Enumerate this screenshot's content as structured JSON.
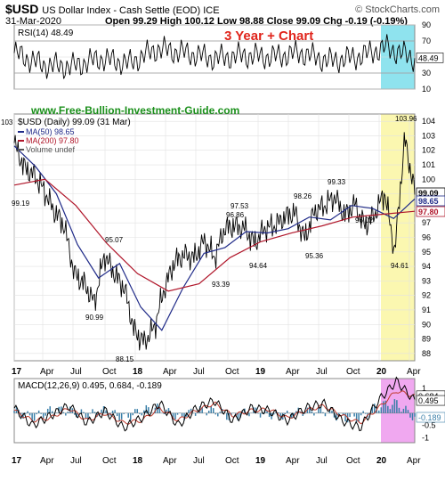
{
  "header": {
    "symbol": "$USD",
    "description": "US Dollar Index - Cash Settle (EOD) ICE",
    "date": "31-Mar-2020",
    "quote": "Open 99.29  High 100.12  Low 98.88  Close 99.09  Chg -0.19 (-0.19%)",
    "brand": "© StockCharts.com"
  },
  "colors": {
    "price": "#000000",
    "ma50": "#1f2a88",
    "ma200": "#b0162a",
    "rsi": "#000000",
    "macd": "#000000",
    "signal": "#c0392b",
    "histogram": "#3a7fa8",
    "rsi_highlight": "#8fe3ee",
    "price_highlight": "#fbf7b0",
    "macd_highlight": "#f0a8f0",
    "promo_red": "#e0241b",
    "promo_green": "#1a8f1a"
  },
  "chart_data": [
    {
      "type": "line",
      "panel": "rsi",
      "legend": "RSI(14) 48.49",
      "annotation": "3 Year + Chart",
      "ylim": [
        10,
        90
      ],
      "yticks": [
        10,
        30,
        50,
        70,
        90
      ],
      "reference_lines": [
        30,
        70
      ],
      "last_value": "48.49",
      "x": [
        "2017-01",
        "2017-04",
        "2017-07",
        "2017-10",
        "2018-01",
        "2018-04",
        "2018-07",
        "2018-10",
        "2019-01",
        "2019-04",
        "2019-07",
        "2019-10",
        "2020-01",
        "2020-02",
        "2020-03"
      ],
      "values": [
        55,
        40,
        38,
        48,
        42,
        60,
        55,
        48,
        52,
        50,
        55,
        45,
        50,
        62,
        48
      ]
    },
    {
      "type": "line",
      "panel": "price",
      "title": "$USD (Daily) 99.09 (31 Mar)",
      "watermark": "www.Free-Bullion-Investment-Guide.com",
      "legend": [
        "MA(50) 98.65",
        "MA(200) 97.80",
        "Volume undef"
      ],
      "ylim": [
        87.5,
        104.5
      ],
      "yticks": [
        88,
        89,
        90,
        91,
        92,
        93,
        94,
        95,
        96,
        97,
        98,
        99,
        100,
        101,
        102,
        103,
        104
      ],
      "top_left_label": "103",
      "xticks": [
        "17",
        "Apr",
        "Jul",
        "Oct",
        "18",
        "Apr",
        "Jul",
        "Oct",
        "19",
        "Apr",
        "Jul",
        "Oct",
        "20",
        "Apr"
      ],
      "series": [
        {
          "name": "$USD",
          "x": [
            "2017-01",
            "2017-02",
            "2017-03",
            "2017-04",
            "2017-05",
            "2017-06",
            "2017-07",
            "2017-08",
            "2017-09",
            "2017-10",
            "2017-11",
            "2017-12",
            "2018-01",
            "2018-02",
            "2018-03",
            "2018-04",
            "2018-05",
            "2018-06",
            "2018-07",
            "2018-08",
            "2018-09",
            "2018-10",
            "2018-11",
            "2018-12",
            "2019-01",
            "2019-02",
            "2019-03",
            "2019-04",
            "2019-05",
            "2019-06",
            "2019-07",
            "2019-08",
            "2019-09",
            "2019-10",
            "2019-11",
            "2019-12",
            "2020-01",
            "2020-02",
            "2020-03a",
            "2020-03b",
            "2020-03c"
          ],
          "values": [
            102.5,
            100.8,
            100.3,
            99.2,
            97.8,
            96.8,
            93.5,
            92.8,
            91.5,
            94.8,
            93.5,
            92.5,
            89.5,
            88.8,
            89.8,
            92.5,
            94.3,
            94.8,
            94.6,
            95.8,
            94.6,
            96.6,
            96.8,
            96.6,
            95.6,
            96.6,
            96.8,
            97.4,
            97.7,
            95.9,
            97.8,
            98.2,
            98.8,
            97.5,
            98.3,
            96.8,
            97.6,
            99.1,
            95.0,
            102.8,
            99.09
          ]
        },
        {
          "name": "MA(50)",
          "x": [
            "2017-01",
            "2017-03",
            "2017-05",
            "2017-07",
            "2017-09",
            "2017-11",
            "2018-01",
            "2018-03",
            "2018-05",
            "2018-07",
            "2018-09",
            "2018-11",
            "2019-01",
            "2019-03",
            "2019-05",
            "2019-07",
            "2019-09",
            "2019-11",
            "2020-01",
            "2020-03"
          ],
          "values": [
            102.3,
            100.9,
            99.0,
            95.5,
            93.2,
            94.2,
            91.2,
            89.6,
            92.5,
            94.9,
            95.3,
            96.4,
            96.3,
            96.6,
            97.4,
            97.2,
            98.2,
            98.0,
            97.3,
            98.65
          ]
        },
        {
          "name": "MA(200)",
          "x": [
            "2017-01",
            "2017-04",
            "2017-07",
            "2017-10",
            "2018-01",
            "2018-04",
            "2018-07",
            "2018-10",
            "2019-01",
            "2019-04",
            "2019-07",
            "2019-10",
            "2020-01",
            "2020-03"
          ],
          "values": [
            99.6,
            100.0,
            98.2,
            95.6,
            93.5,
            92.3,
            92.8,
            94.6,
            95.7,
            96.3,
            96.8,
            97.4,
            97.6,
            97.8
          ]
        }
      ],
      "annotations": [
        "99.19",
        "95.07",
        "90.99",
        "88.15",
        "96.86",
        "93.39",
        "97.53",
        "94.64",
        "98.26",
        "95.36",
        "99.33",
        "96.02",
        "94.61",
        "103.96"
      ],
      "last_labels": [
        "99.09",
        "98.65",
        "97.80"
      ]
    },
    {
      "type": "line",
      "panel": "macd",
      "legend": "MACD(12,26,9) 0.495, 0.684, -0.189",
      "ylim": [
        -1.2,
        1.4
      ],
      "yticks": [
        1.0,
        0.5,
        -0.5,
        -1.0
      ],
      "xticks": [
        "17",
        "Apr",
        "Jul",
        "Oct",
        "18",
        "Apr",
        "Jul",
        "Oct",
        "19",
        "Apr",
        "Jul",
        "Oct",
        "20",
        "Apr"
      ],
      "last_labels": [
        "0.684",
        "0.495",
        "-0.189"
      ],
      "series": [
        {
          "name": "MACD",
          "values": [
            0.2,
            -0.5,
            -0.1,
            0.3,
            -0.4,
            0.1,
            -0.6,
            -0.2,
            0.4,
            -0.5,
            0.2,
            0.5,
            -0.3,
            0.2,
            0.1,
            -0.3,
            0.2,
            0.4,
            -0.3,
            -0.6,
            0.5,
            1.3,
            0.495
          ]
        },
        {
          "name": "Signal",
          "values": [
            0.1,
            -0.3,
            -0.2,
            0.2,
            -0.3,
            0.0,
            -0.4,
            -0.3,
            0.2,
            -0.3,
            0.1,
            0.4,
            -0.1,
            0.1,
            0.15,
            -0.2,
            0.1,
            0.3,
            -0.1,
            -0.4,
            0.2,
            0.9,
            0.684
          ]
        }
      ]
    }
  ]
}
